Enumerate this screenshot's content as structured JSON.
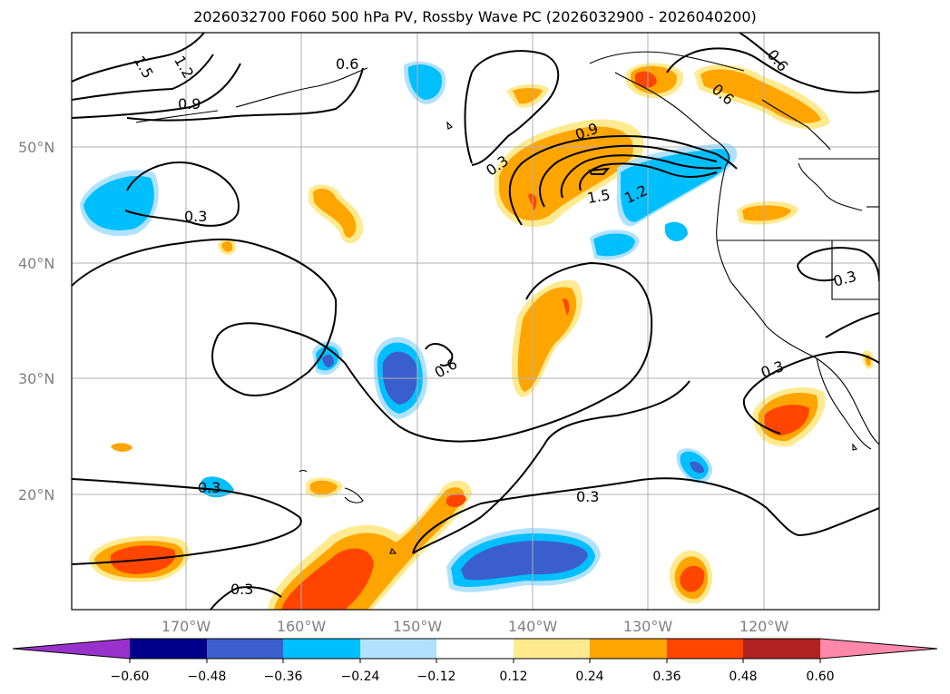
{
  "title": "2026032700 F060 500 hPa PV, Rossby Wave PC (2026032900 - 2026040200)",
  "lat_labels": [
    "50°N",
    "40°N",
    "30°N",
    "20°N"
  ],
  "lon_labels": [
    "170°W",
    "160°W",
    "150°W",
    "140°W",
    "130°W",
    "120°W"
  ],
  "contour_labels": [
    "1.5",
    "1.2",
    "0.9",
    "0.6",
    "0.3",
    "0.3",
    "0.6",
    "0.9",
    "1.5",
    "1.2",
    "0.6",
    "0.3",
    "0.3",
    "0.6",
    "0.3",
    "0.3",
    "0.3"
  ],
  "colorbar": {
    "ticks": [
      "−0.60",
      "−0.48",
      "−0.36",
      "−0.24",
      "−0.12",
      "0.12",
      "0.24",
      "0.36",
      "0.48",
      "0.60"
    ],
    "colors": [
      "#9932cc",
      "#00008b",
      "#3a5fcd",
      "#00bfff",
      "#b0e2ff",
      "#ffffff",
      "#ffea8f",
      "#ffa500",
      "#ff4500",
      "#b22222",
      "#ff88aa"
    ]
  },
  "colors": {
    "neg_strong": "#3a5fcd",
    "neg_mid": "#00bfff",
    "neg_weak": "#b0e2ff",
    "pos_weak": "#ffea8f",
    "pos_mid": "#ffa500",
    "pos_strong": "#ff4500"
  }
}
